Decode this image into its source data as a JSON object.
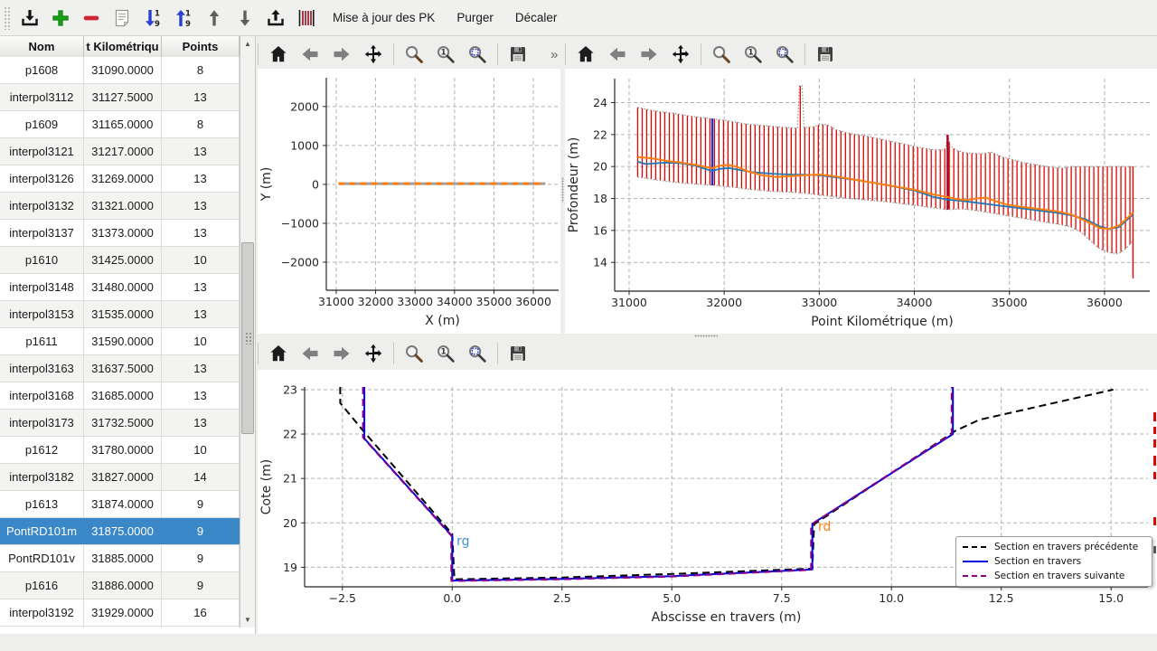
{
  "window": {
    "bg": "#eeeeec",
    "selection_color": "#3b88c8"
  },
  "toolbar": {
    "items": [
      {
        "type": "icon",
        "name": "import"
      },
      {
        "type": "icon",
        "name": "add"
      },
      {
        "type": "icon",
        "name": "remove"
      },
      {
        "type": "icon",
        "name": "document"
      },
      {
        "type": "icon",
        "name": "sort-numeric-down"
      },
      {
        "type": "icon",
        "name": "sort-numeric-up"
      },
      {
        "type": "icon",
        "name": "move-up"
      },
      {
        "type": "icon",
        "name": "move-down"
      },
      {
        "type": "icon",
        "name": "export"
      },
      {
        "type": "icon",
        "name": "sections"
      },
      {
        "type": "button",
        "label": "Mise à jour des PK"
      },
      {
        "type": "button",
        "label": "Purger"
      },
      {
        "type": "button",
        "label": "Décaler"
      }
    ]
  },
  "table": {
    "columns": [
      "Nom",
      "t Kilométriqu",
      "Points"
    ],
    "selected": "PontRD101m",
    "rows": [
      {
        "name": "p1608",
        "pk": "31090.0000",
        "points": "8"
      },
      {
        "name": "interpol3112",
        "pk": "31127.5000",
        "points": "13"
      },
      {
        "name": "p1609",
        "pk": "31165.0000",
        "points": "8"
      },
      {
        "name": "interpol3121",
        "pk": "31217.0000",
        "points": "13"
      },
      {
        "name": "interpol3126",
        "pk": "31269.0000",
        "points": "13"
      },
      {
        "name": "interpol3132",
        "pk": "31321.0000",
        "points": "13"
      },
      {
        "name": "interpol3137",
        "pk": "31373.0000",
        "points": "13"
      },
      {
        "name": "p1610",
        "pk": "31425.0000",
        "points": "10"
      },
      {
        "name": "interpol3148",
        "pk": "31480.0000",
        "points": "13"
      },
      {
        "name": "interpol3153",
        "pk": "31535.0000",
        "points": "13"
      },
      {
        "name": "p1611",
        "pk": "31590.0000",
        "points": "10"
      },
      {
        "name": "interpol3163",
        "pk": "31637.5000",
        "points": "13"
      },
      {
        "name": "interpol3168",
        "pk": "31685.0000",
        "points": "13"
      },
      {
        "name": "interpol3173",
        "pk": "31732.5000",
        "points": "13"
      },
      {
        "name": "p1612",
        "pk": "31780.0000",
        "points": "10"
      },
      {
        "name": "interpol3182",
        "pk": "31827.0000",
        "points": "14"
      },
      {
        "name": "p1613",
        "pk": "31874.0000",
        "points": "9"
      },
      {
        "name": "PontRD101m",
        "pk": "31875.0000",
        "points": "9"
      },
      {
        "name": "PontRD101v",
        "pk": "31885.0000",
        "points": "9"
      },
      {
        "name": "p1616",
        "pk": "31886.0000",
        "points": "9"
      },
      {
        "name": "interpol3192",
        "pk": "31929.0000",
        "points": "16"
      }
    ]
  },
  "figtoolbar": {
    "icons": [
      "home",
      "back",
      "forward",
      "pan",
      "sep",
      "zoom",
      "zoom-one",
      "zoom-fit",
      "sep",
      "save"
    ],
    "overflow": "»"
  },
  "chart_data": [
    {
      "type": "line",
      "xlabel": "X (m)",
      "ylabel": "Y (m)",
      "xlim": [
        30750,
        36640
      ],
      "ylim": [
        -2720,
        2740
      ],
      "xticks": [
        31000,
        32000,
        33000,
        34000,
        35000,
        36000
      ],
      "yticks": [
        -2000,
        -1000,
        0,
        1000,
        2000
      ],
      "grid": true,
      "series": [
        {
          "name": "axe-hydraulique-base",
          "color": "#9aa0a6",
          "width": 3,
          "dash": "",
          "x": [
            31060,
            36300
          ],
          "y": [
            20,
            20
          ]
        },
        {
          "name": "axe-hydraulique",
          "color": "#ff7f0e",
          "width": 3,
          "dash": "7,5",
          "x": [
            31060,
            36300
          ],
          "y": [
            20,
            20
          ]
        }
      ]
    },
    {
      "type": "profile",
      "xlabel": "Point Kilométrique (m)",
      "ylabel": "Profondeur (m)",
      "xlim": [
        30848,
        36476
      ],
      "ylim": [
        12.2,
        25.5
      ],
      "xticks": [
        31000,
        32000,
        33000,
        34000,
        35000,
        36000
      ],
      "yticks": [
        14,
        16,
        18,
        20,
        22,
        24
      ],
      "grid": true,
      "sections": {
        "start": 31090,
        "end": 36290,
        "step": 47.5,
        "color": "#e10600",
        "width": 1.3
      },
      "envelope_color": "#929290",
      "envelope_top": [
        [
          31090,
          23.7
        ],
        [
          31250,
          23.5
        ],
        [
          31450,
          23.35
        ],
        [
          31650,
          23.15
        ],
        [
          31875,
          23.0
        ],
        [
          32050,
          22.85
        ],
        [
          32250,
          22.65
        ],
        [
          32450,
          22.55
        ],
        [
          32650,
          22.45
        ],
        [
          32770,
          22.4
        ],
        [
          32790,
          25.05
        ],
        [
          32820,
          25.05
        ],
        [
          32840,
          22.45
        ],
        [
          32950,
          22.5
        ],
        [
          33010,
          22.65
        ],
        [
          33090,
          22.6
        ],
        [
          33180,
          22.3
        ],
        [
          33300,
          22.1
        ],
        [
          33500,
          21.9
        ],
        [
          33700,
          21.65
        ],
        [
          33900,
          21.4
        ],
        [
          34050,
          21.2
        ],
        [
          34200,
          21.05
        ],
        [
          34300,
          21.05
        ],
        [
          34330,
          21.15
        ],
        [
          34350,
          22.0
        ],
        [
          34375,
          21.3
        ],
        [
          34450,
          21.0
        ],
        [
          34550,
          20.85
        ],
        [
          34700,
          20.8
        ],
        [
          34820,
          20.9
        ],
        [
          34920,
          20.6
        ],
        [
          35020,
          20.45
        ],
        [
          35150,
          20.25
        ],
        [
          35300,
          20.1
        ],
        [
          35450,
          19.95
        ],
        [
          35570,
          19.9
        ],
        [
          35650,
          20.0
        ],
        [
          36300,
          20.0
        ]
      ],
      "envelope_bottom": [
        [
          31090,
          19.35
        ],
        [
          31300,
          19.15
        ],
        [
          31500,
          19.0
        ],
        [
          31700,
          18.9
        ],
        [
          31900,
          18.82
        ],
        [
          32100,
          18.7
        ],
        [
          32300,
          18.55
        ],
        [
          32500,
          18.45
        ],
        [
          32700,
          18.4
        ],
        [
          32900,
          18.3
        ],
        [
          33100,
          18.15
        ],
        [
          33300,
          18.0
        ],
        [
          33500,
          17.9
        ],
        [
          33700,
          17.8
        ],
        [
          33900,
          17.65
        ],
        [
          34100,
          17.5
        ],
        [
          34250,
          17.38
        ],
        [
          34350,
          17.3
        ],
        [
          34500,
          17.35
        ],
        [
          34650,
          17.25
        ],
        [
          34800,
          17.1
        ],
        [
          34950,
          16.95
        ],
        [
          35100,
          16.8
        ],
        [
          35250,
          16.65
        ],
        [
          35400,
          16.5
        ],
        [
          35550,
          16.35
        ],
        [
          35650,
          16.2
        ],
        [
          35750,
          15.9
        ],
        [
          35850,
          15.35
        ],
        [
          35950,
          14.85
        ],
        [
          36050,
          14.6
        ],
        [
          36150,
          14.55
        ],
        [
          36230,
          14.9
        ],
        [
          36290,
          15.3
        ]
      ],
      "series": [
        {
          "name": "fond-lisse",
          "color": "#1f77b4",
          "width": 1.8,
          "dash": "",
          "points": [
            [
              31090,
              20.3
            ],
            [
              31180,
              20.15
            ],
            [
              31270,
              20.2
            ],
            [
              31400,
              20.25
            ],
            [
              31550,
              20.2
            ],
            [
              31700,
              20.05
            ],
            [
              31800,
              19.85
            ],
            [
              31875,
              19.72
            ],
            [
              31950,
              19.85
            ],
            [
              32050,
              19.9
            ],
            [
              32150,
              19.8
            ],
            [
              32300,
              19.65
            ],
            [
              32500,
              19.55
            ],
            [
              32700,
              19.5
            ],
            [
              32900,
              19.48
            ],
            [
              33000,
              19.45
            ],
            [
              33200,
              19.3
            ],
            [
              33400,
              19.15
            ],
            [
              33700,
              18.85
            ],
            [
              34000,
              18.5
            ],
            [
              34200,
              18.1
            ],
            [
              34350,
              17.92
            ],
            [
              34500,
              17.85
            ],
            [
              34700,
              17.7
            ],
            [
              34900,
              17.55
            ],
            [
              35100,
              17.4
            ],
            [
              35300,
              17.25
            ],
            [
              35500,
              17.1
            ],
            [
              35650,
              16.95
            ],
            [
              35800,
              16.7
            ],
            [
              35950,
              16.25
            ],
            [
              36050,
              16.1
            ],
            [
              36150,
              16.2
            ],
            [
              36300,
              17.0
            ]
          ]
        },
        {
          "name": "fond",
          "color": "#ff7f0e",
          "width": 2,
          "dash": "",
          "points": [
            [
              31090,
              20.6
            ],
            [
              31250,
              20.5
            ],
            [
              31400,
              20.35
            ],
            [
              31550,
              20.25
            ],
            [
              31700,
              20.1
            ],
            [
              31800,
              19.98
            ],
            [
              31875,
              19.9
            ],
            [
              31950,
              20.05
            ],
            [
              32050,
              20.1
            ],
            [
              32150,
              19.95
            ],
            [
              32250,
              19.7
            ],
            [
              32400,
              19.45
            ],
            [
              32550,
              19.35
            ],
            [
              32700,
              19.4
            ],
            [
              32850,
              19.45
            ],
            [
              33000,
              19.5
            ],
            [
              33150,
              19.4
            ],
            [
              33300,
              19.25
            ],
            [
              33500,
              19.05
            ],
            [
              33700,
              18.85
            ],
            [
              34000,
              18.55
            ],
            [
              34200,
              18.25
            ],
            [
              34350,
              18.1
            ],
            [
              34450,
              17.95
            ],
            [
              34550,
              17.9
            ],
            [
              34650,
              18.0
            ],
            [
              34750,
              18.05
            ],
            [
              34850,
              17.85
            ],
            [
              34950,
              17.65
            ],
            [
              35100,
              17.5
            ],
            [
              35300,
              17.35
            ],
            [
              35500,
              17.2
            ],
            [
              35650,
              17.0
            ],
            [
              35800,
              16.6
            ],
            [
              35950,
              16.15
            ],
            [
              36050,
              16.1
            ],
            [
              36150,
              16.3
            ],
            [
              36300,
              17.1
            ]
          ]
        }
      ],
      "markers": [
        {
          "name": "section-selectionnee",
          "x": 31875,
          "y0": 18.82,
          "y1": 23.0,
          "color": "#2b2bc8",
          "width": 2.4
        },
        {
          "name": "section-ouvrage",
          "x": 34350,
          "y0": 17.3,
          "y1": 22.0,
          "color": "#b00020",
          "width": 2.4
        },
        {
          "name": "section-finale",
          "x": 36300,
          "y0": 13.0,
          "y1": 20.0,
          "color": "#e10600",
          "width": 1.4
        }
      ]
    },
    {
      "type": "xsection",
      "xlabel": "Abscisse en travers (m)",
      "ylabel": "Cote (m)",
      "xlim": [
        -3.36,
        15.84
      ],
      "ylim": [
        18.56,
        23.06
      ],
      "xticks": [
        -2.5,
        0,
        2.5,
        5,
        7.5,
        10,
        12.5,
        15
      ],
      "xtick_decimals": 1,
      "yticks": [
        19,
        20,
        21,
        22,
        23
      ],
      "grid": true,
      "series": [
        {
          "name": "section-precedente",
          "label": "Section en travers précédente",
          "color": "#000000",
          "width": 2,
          "dash": "8,5",
          "points": [
            [
              -2.55,
              23.06
            ],
            [
              -2.55,
              22.7
            ],
            [
              -2.05,
              22.1
            ],
            [
              0.0,
              19.75
            ],
            [
              0.05,
              18.73
            ],
            [
              2.5,
              18.77
            ],
            [
              5.0,
              18.85
            ],
            [
              8.2,
              18.97
            ],
            [
              8.24,
              19.97
            ],
            [
              11.45,
              22.07
            ],
            [
              12.0,
              22.32
            ],
            [
              15.05,
              23.0
            ]
          ]
        },
        {
          "name": "section-courante",
          "label": "Section en travers",
          "color": "#0000dd",
          "width": 2,
          "dash": "",
          "points": [
            [
              -2.0,
              23.06
            ],
            [
              -2.0,
              21.9
            ],
            [
              0.0,
              19.7
            ],
            [
              0.0,
              18.7
            ],
            [
              2.5,
              18.74
            ],
            [
              5.0,
              18.8
            ],
            [
              8.2,
              18.95
            ],
            [
              8.2,
              19.98
            ],
            [
              11.4,
              22.0
            ],
            [
              11.4,
              23.06
            ]
          ]
        },
        {
          "name": "section-suivante",
          "label": "Section en travers suivante",
          "color": "#8b008b",
          "width": 2,
          "dash": "8,5",
          "points": [
            [
              -2.03,
              23.06
            ],
            [
              -2.03,
              21.92
            ],
            [
              -0.02,
              19.71
            ],
            [
              -0.02,
              18.69
            ],
            [
              2.5,
              18.73
            ],
            [
              5.0,
              18.79
            ],
            [
              8.17,
              18.94
            ],
            [
              8.17,
              19.96
            ],
            [
              11.37,
              22.0
            ],
            [
              11.37,
              23.06
            ]
          ]
        }
      ],
      "annotations": [
        {
          "text": "rg",
          "x": 0.1,
          "y": 19.5,
          "color": "#3d94d1"
        },
        {
          "text": "rd",
          "x": 8.33,
          "y": 19.82,
          "color": "#ff7f0e"
        }
      ],
      "legend": {
        "position": "lower right"
      }
    }
  ]
}
